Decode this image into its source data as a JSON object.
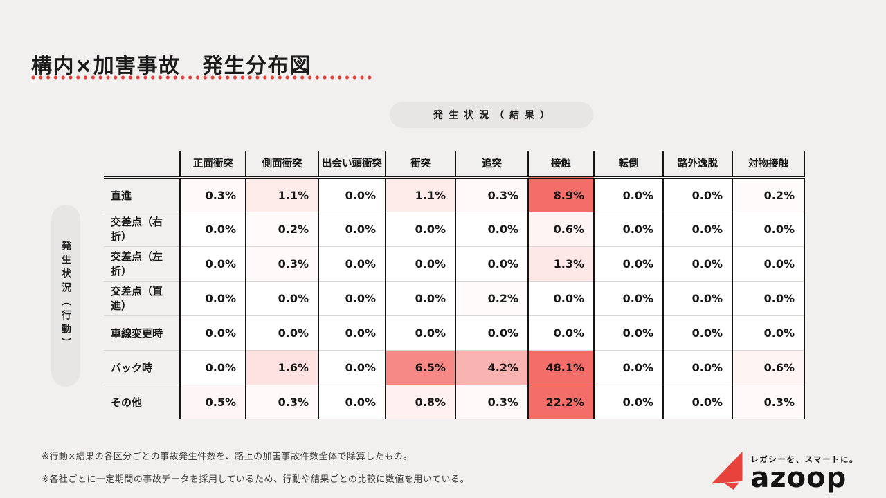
{
  "page": {
    "title": "構内×加害事故　発生分布図",
    "notes": [
      "※行動×結果の各区分ごとの事故発生件数を、路上の加害事故件数全体で除算したもの。",
      "※各社ごとに一定期間の事故データを採用しているため、行動や結果ごとの比較に数値を用いている。"
    ]
  },
  "axes": {
    "result_label": "発生状況（結果）",
    "action_label": "発生状況（行動）"
  },
  "logo": {
    "wordmark": "azoop",
    "tagline": "レガシーを、スマートに。"
  },
  "colors": {
    "accent_red": "#e2403c",
    "heat_base": "#f46e69",
    "page_bg": "#f1f0ef",
    "cell_bg": "#ffffff"
  },
  "chart_data": {
    "type": "heatmap",
    "title": "構内×加害事故　発生分布図",
    "x_axis_label": "発生状況（結果）",
    "y_axis_label": "発生状況（行動）",
    "x_categories": [
      "正面衝突",
      "側面衝突",
      "出会い頭衝突",
      "衝突",
      "追突",
      "接触",
      "転倒",
      "路外逸脱",
      "対物接触"
    ],
    "y_categories": [
      "直進",
      "交差点（右折）",
      "交差点（左折）",
      "交差点（直進）",
      "車線変更時",
      "バック時",
      "その他"
    ],
    "values_percent": [
      [
        0.3,
        1.1,
        0.0,
        1.1,
        0.3,
        8.9,
        0.0,
        0.0,
        0.2
      ],
      [
        0.0,
        0.2,
        0.0,
        0.0,
        0.0,
        0.6,
        0.0,
        0.0,
        0.0
      ],
      [
        0.0,
        0.3,
        0.0,
        0.0,
        0.0,
        1.3,
        0.0,
        0.0,
        0.0
      ],
      [
        0.0,
        0.0,
        0.0,
        0.0,
        0.2,
        0.0,
        0.0,
        0.0,
        0.0
      ],
      [
        0.0,
        0.0,
        0.0,
        0.0,
        0.0,
        0.0,
        0.0,
        0.0,
        0.0
      ],
      [
        0.0,
        1.6,
        0.0,
        6.5,
        4.2,
        48.1,
        0.0,
        0.0,
        0.6
      ],
      [
        0.5,
        0.3,
        0.0,
        0.8,
        0.3,
        22.2,
        0.0,
        0.0,
        0.3
      ]
    ],
    "value_suffix": "%",
    "color_scale": {
      "min_color": "#ffffff",
      "max_color": "#f46e69",
      "cap_percent": 8
    },
    "legend": "none",
    "grid": "on"
  }
}
